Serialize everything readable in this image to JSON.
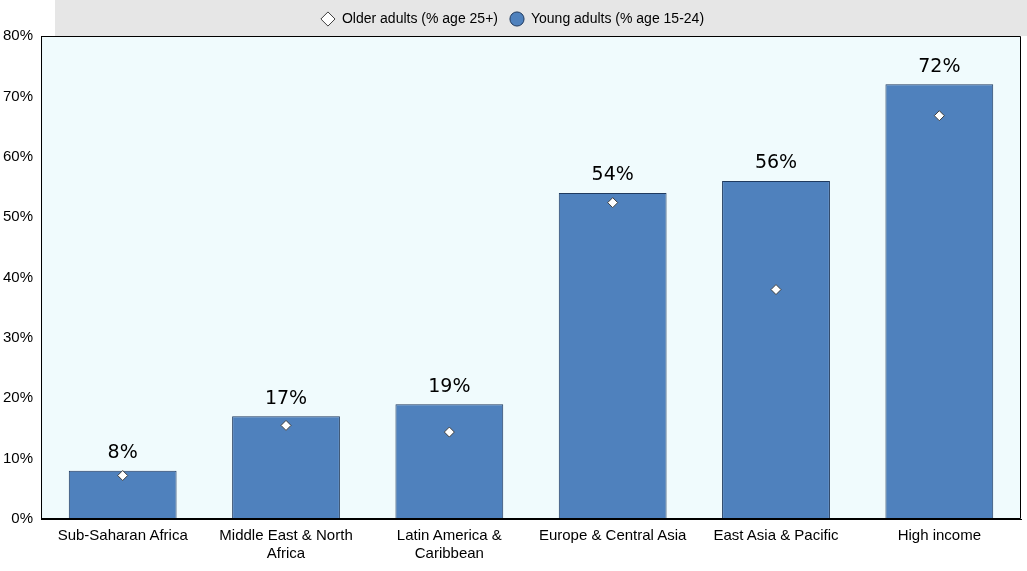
{
  "chart_data": {
    "type": "bar",
    "categories": [
      "Sub-Saharan Africa",
      "Middle East & North Africa",
      "Latin America & Caribbean",
      "Europe & Central Asia",
      "East Asia & Pacific",
      "High income"
    ],
    "series": [
      {
        "name": "Young adults (% age 15-24)",
        "color": "#4f81bd",
        "values": [
          8,
          17,
          19,
          54,
          56,
          72
        ],
        "value_labels": [
          "8%",
          "17%",
          "19%",
          "54%",
          "56%",
          "72%"
        ]
      },
      {
        "name": "Older adults (% age 25+)",
        "type": "scatter",
        "marker": "diamond",
        "color": "#ffffff",
        "values": [
          7.2,
          15.5,
          14.4,
          52.4,
          38.0,
          66.8
        ]
      }
    ],
    "ylim": [
      0,
      80
    ],
    "yticks": [
      {
        "value": 0,
        "label": "0%"
      },
      {
        "value": 10,
        "label": "10%"
      },
      {
        "value": 20,
        "label": "20%"
      },
      {
        "value": 30,
        "label": "30%"
      },
      {
        "value": 40,
        "label": "40%"
      },
      {
        "value": 50,
        "label": "50%"
      },
      {
        "value": 60,
        "label": "60%"
      },
      {
        "value": 70,
        "label": "70%"
      },
      {
        "value": 80,
        "label": "80%"
      }
    ],
    "grid": false,
    "legend": "top"
  }
}
